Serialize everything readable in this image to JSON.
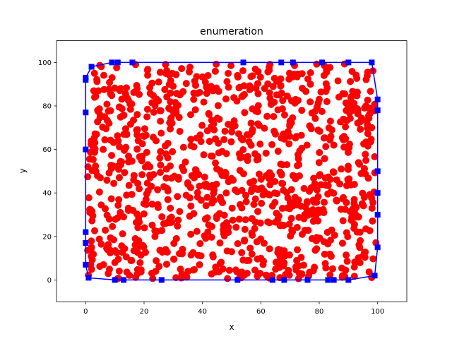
{
  "chart_data": {
    "type": "scatter",
    "title": "enumeration",
    "xlabel": "x",
    "ylabel": "y",
    "xlim": [
      -10,
      110
    ],
    "ylim": [
      -10,
      110
    ],
    "xticks": [
      0,
      20,
      40,
      60,
      80,
      100
    ],
    "yticks": [
      0,
      20,
      40,
      60,
      80,
      100
    ],
    "xtick_labels": [
      "0",
      "20",
      "40",
      "60",
      "80",
      "100"
    ],
    "ytick_labels": [
      "0",
      "20",
      "40",
      "60",
      "80",
      "100"
    ],
    "grid": false,
    "colors": {
      "points": "#ff0000",
      "hull": "#0000ff",
      "axes": "#000000"
    },
    "series": [
      {
        "kind": "scatter",
        "marker": "circle",
        "color": "#ff0000",
        "count_note": "approximately 1000 random points uniformly spread across [0,100] x [0,100]",
        "x": [
          3,
          8,
          12,
          18,
          25,
          31,
          37,
          44,
          52,
          58,
          63,
          70,
          77,
          84,
          91,
          96,
          5,
          14,
          22,
          29,
          35,
          41,
          48,
          55,
          61,
          67,
          73,
          80,
          86,
          93,
          2,
          10,
          17,
          24,
          33,
          39,
          46,
          53,
          60,
          66,
          72,
          79,
          88,
          95,
          6,
          13,
          21,
          28,
          36,
          43,
          50,
          57,
          64,
          71,
          78,
          85,
          92,
          98
        ],
        "y": [
          95,
          72,
          88,
          64,
          91,
          77,
          83,
          69,
          94,
          58,
          86,
          73,
          90,
          66,
          81,
          55,
          47,
          39,
          52,
          33,
          44,
          28,
          49,
          36,
          41,
          25,
          53,
          31,
          46,
          22,
          15,
          8,
          19,
          4,
          12,
          7,
          17,
          3,
          10,
          14,
          6,
          18,
          2,
          11,
          60,
          29,
          75,
          42,
          21,
          57,
          13,
          68,
          34,
          48,
          27,
          62,
          37,
          70
        ]
      },
      {
        "kind": "hull",
        "marker": "square",
        "color": "#0000ff",
        "x": [
          0,
          0,
          2,
          9,
          11,
          16,
          54,
          67,
          71,
          81,
          90,
          98,
          100,
          100,
          100,
          100,
          100,
          100,
          99,
          90,
          85,
          83,
          76,
          68,
          64,
          52,
          26,
          13,
          10,
          1,
          0,
          0,
          0,
          0,
          0
        ],
        "y": [
          92,
          93,
          98,
          100,
          100,
          100,
          100,
          100,
          100,
          100,
          100,
          100,
          83,
          78,
          50,
          40,
          30,
          15,
          2,
          0,
          0,
          0,
          0,
          0,
          0,
          0,
          0,
          0,
          0,
          1,
          7,
          17,
          22,
          60,
          77
        ]
      }
    ]
  }
}
